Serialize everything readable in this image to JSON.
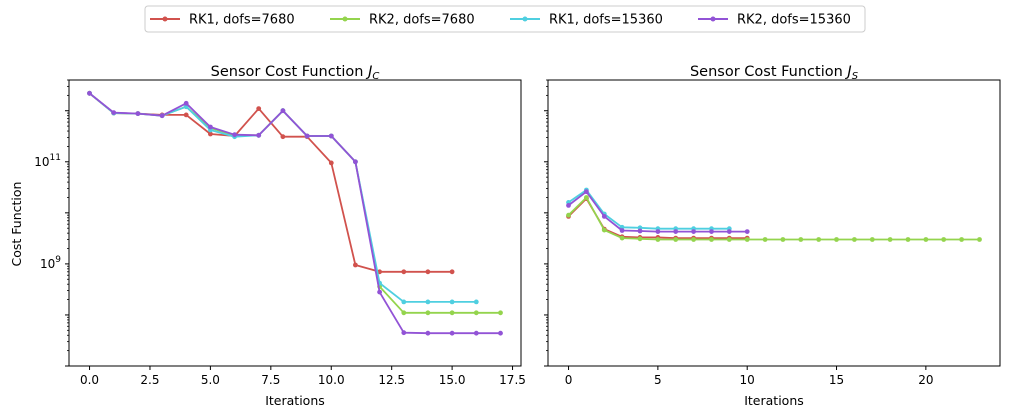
{
  "colors": {
    "series": [
      "#d1524d",
      "#94d44d",
      "#4fcfe0",
      "#9253d6"
    ]
  },
  "legend": {
    "placement": "top-center",
    "entries": [
      "RK1, dofs=7680",
      "RK2, dofs=7680",
      "RK1, dofs=15360",
      "RK2, dofs=15360"
    ]
  },
  "chart_data": [
    {
      "type": "line",
      "title": "Sensor Cost Function J_C",
      "title_main": "Sensor Cost Function ",
      "title_sym": "J",
      "title_sub": "C",
      "xlabel": "Iterations",
      "ylabel": "Cost Function",
      "yscale": "log",
      "xlim": [
        -0.85,
        17.85
      ],
      "ylim": [
        10000000.0,
        4000000000000.0
      ],
      "xticks": [
        0,
        2.5,
        5,
        7.5,
        10,
        12.5,
        15,
        17.5
      ],
      "xtick_labels": [
        "0.0",
        "2.5",
        "5.0",
        "7.5",
        "10.0",
        "12.5",
        "15.0",
        "17.5"
      ],
      "yticks": [
        1000000000.0,
        100000000000.0
      ],
      "ytick_labels": [
        {
          "base": "10",
          "exp": "9"
        },
        {
          "base": "10",
          "exp": "11"
        }
      ],
      "grid": false,
      "series": [
        {
          "name": "RK1, dofs=7680",
          "x": [
            0,
            1,
            2,
            3,
            4,
            5,
            6,
            7,
            8,
            9,
            10,
            11,
            12,
            13,
            14,
            15
          ],
          "y": [
            2200000000000.0,
            900000000000.0,
            880000000000.0,
            830000000000.0,
            830000000000.0,
            350000000000.0,
            320000000000.0,
            1100000000000.0,
            310000000000.0,
            310000000000.0,
            95000000000.0,
            950000000.0,
            700000000.0,
            700000000.0,
            700000000.0,
            700000000.0
          ]
        },
        {
          "name": "RK2, dofs=7680",
          "x": [
            0,
            1,
            2,
            3,
            4,
            5,
            6,
            7,
            8,
            9,
            10,
            11,
            12,
            13,
            14,
            15,
            16,
            17
          ],
          "y": [
            2200000000000.0,
            900000000000.0,
            880000000000.0,
            800000000000.0,
            1200000000000.0,
            460000000000.0,
            330000000000.0,
            330000000000.0,
            1000000000000.0,
            320000000000.0,
            320000000000.0,
            100000000000.0,
            360000000.0,
            110000000.0,
            110000000.0,
            110000000.0,
            110000000.0,
            110000000.0
          ]
        },
        {
          "name": "RK1, dofs=15360",
          "x": [
            0,
            1,
            2,
            3,
            4,
            5,
            6,
            7,
            8,
            9,
            10,
            11,
            12,
            13,
            14,
            15,
            16
          ],
          "y": [
            2200000000000.0,
            900000000000.0,
            880000000000.0,
            800000000000.0,
            1200000000000.0,
            420000000000.0,
            310000000000.0,
            330000000000.0,
            1000000000000.0,
            320000000000.0,
            320000000000.0,
            100000000000.0,
            420000000.0,
            180000000.0,
            180000000.0,
            180000000.0,
            180000000.0
          ]
        },
        {
          "name": "RK2, dofs=15360",
          "x": [
            0,
            1,
            2,
            3,
            4,
            5,
            6,
            7,
            8,
            9,
            10,
            11,
            12,
            13,
            14,
            15,
            16,
            17
          ],
          "y": [
            2200000000000.0,
            920000000000.0,
            880000000000.0,
            800000000000.0,
            1400000000000.0,
            480000000000.0,
            340000000000.0,
            330000000000.0,
            1000000000000.0,
            320000000000.0,
            320000000000.0,
            100000000000.0,
            280000000.0,
            45000000.0,
            44000000.0,
            44000000.0,
            44000000.0,
            44000000.0
          ]
        }
      ]
    },
    {
      "type": "line",
      "title": "Sensor Cost Function J_S",
      "title_main": "Sensor Cost Function ",
      "title_sym": "J",
      "title_sub": "S",
      "xlabel": "Iterations",
      "ylabel": "",
      "yscale": "log",
      "sharey": true,
      "xlim": [
        -1.15,
        24.15
      ],
      "ylim": [
        10000000.0,
        4000000000000.0
      ],
      "xticks": [
        0,
        5,
        10,
        15,
        20
      ],
      "xtick_labels": [
        "0",
        "5",
        "10",
        "15",
        "20"
      ],
      "grid": false,
      "series": [
        {
          "name": "RK1, dofs=7680",
          "x": [
            0,
            1,
            2,
            3,
            4,
            5,
            6,
            7,
            8,
            9,
            10
          ],
          "y": [
            8500000000.0,
            19000000000.0,
            4800000000.0,
            3400000000.0,
            3300000000.0,
            3300000000.0,
            3200000000.0,
            3200000000.0,
            3200000000.0,
            3200000000.0,
            3200000000.0
          ]
        },
        {
          "name": "RK2, dofs=7680",
          "x": [
            0,
            1,
            2,
            3,
            4,
            5,
            6,
            7,
            8,
            9,
            10,
            11,
            12,
            13,
            14,
            15,
            16,
            17,
            18,
            19,
            20,
            21,
            22,
            23
          ],
          "y": [
            9000000000.0,
            20000000000.0,
            4600000000.0,
            3200000000.0,
            3100000000.0,
            3000000000.0,
            3000000000.0,
            3000000000.0,
            3000000000.0,
            3000000000.0,
            3000000000.0,
            3000000000.0,
            3000000000.0,
            3000000000.0,
            3000000000.0,
            3000000000.0,
            3000000000.0,
            3000000000.0,
            3000000000.0,
            3000000000.0,
            3000000000.0,
            3000000000.0,
            3000000000.0,
            3000000000.0
          ]
        },
        {
          "name": "RK1, dofs=15360",
          "x": [
            0,
            1,
            2,
            3,
            4,
            5,
            6,
            7,
            8,
            9
          ],
          "y": [
            16000000000.0,
            28000000000.0,
            9500000000.0,
            5200000000.0,
            5100000000.0,
            4900000000.0,
            4900000000.0,
            4900000000.0,
            4900000000.0,
            4900000000.0
          ]
        },
        {
          "name": "RK2, dofs=15360",
          "x": [
            0,
            1,
            2,
            3,
            4,
            5,
            6,
            7,
            8,
            9,
            10
          ],
          "y": [
            14000000000.0,
            26000000000.0,
            8500000000.0,
            4500000000.0,
            4400000000.0,
            4300000000.0,
            4300000000.0,
            4300000000.0,
            4300000000.0,
            4300000000.0,
            4300000000.0
          ]
        }
      ]
    }
  ]
}
